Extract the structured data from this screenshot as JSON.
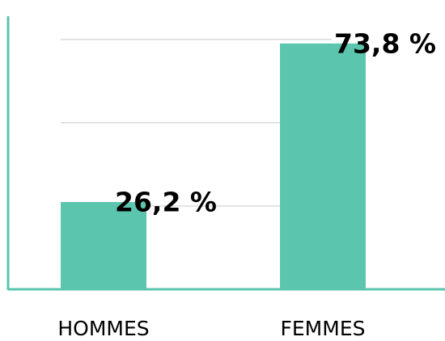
{
  "chart_data": {
    "type": "bar",
    "categories": [
      "HOMMES",
      "FEMMES"
    ],
    "values": [
      26.2,
      73.8
    ],
    "value_labels": [
      "26,2 %",
      "73,8 %"
    ],
    "color": "#5bc5ae",
    "ylim": [
      0,
      82
    ],
    "yticks": [
      25,
      50,
      75
    ],
    "grid": true
  }
}
